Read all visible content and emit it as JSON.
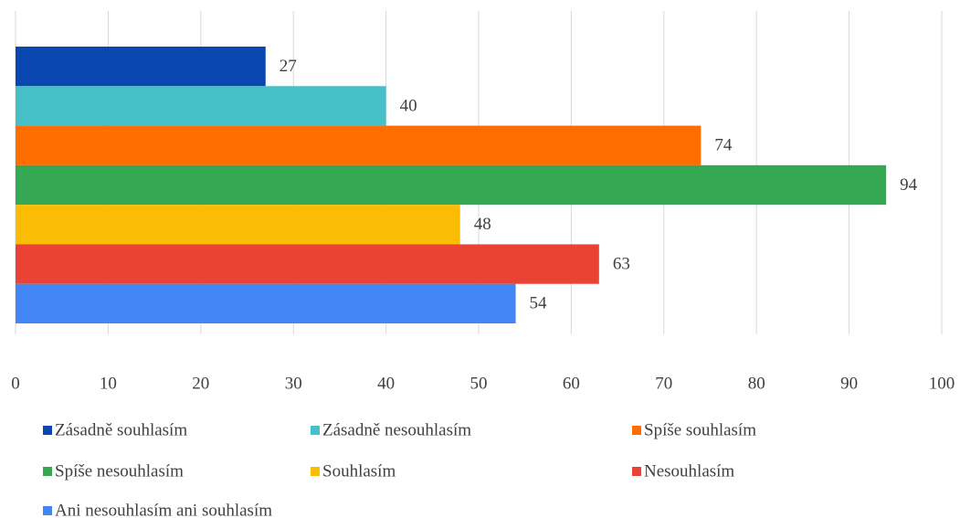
{
  "chart_data": {
    "type": "bar",
    "orientation": "horizontal",
    "series": [
      {
        "name": "Zásadně souhlasím",
        "color": "#0b47b0",
        "values": [
          27
        ]
      },
      {
        "name": "Zásadně nesouhlasím",
        "color": "#47bfc8",
        "values": [
          40
        ]
      },
      {
        "name": "Spíše souhlasím",
        "color": "#ff6d00",
        "values": [
          74
        ]
      },
      {
        "name": "Spíše nesouhlasím",
        "color": "#34a853",
        "values": [
          94
        ]
      },
      {
        "name": "Souhlasím",
        "color": "#fbbc04",
        "values": [
          48
        ]
      },
      {
        "name": "Nesouhlasím",
        "color": "#ea4335",
        "values": [
          63
        ]
      },
      {
        "name": "Ani nesouhlasím ani souhlasím",
        "color": "#4285f4",
        "values": [
          54
        ]
      }
    ],
    "xlim": [
      0,
      100
    ],
    "xticks": [
      0,
      10,
      20,
      30,
      40,
      50,
      60,
      70,
      80,
      90,
      100
    ],
    "grid": true,
    "legend": "bottom"
  }
}
